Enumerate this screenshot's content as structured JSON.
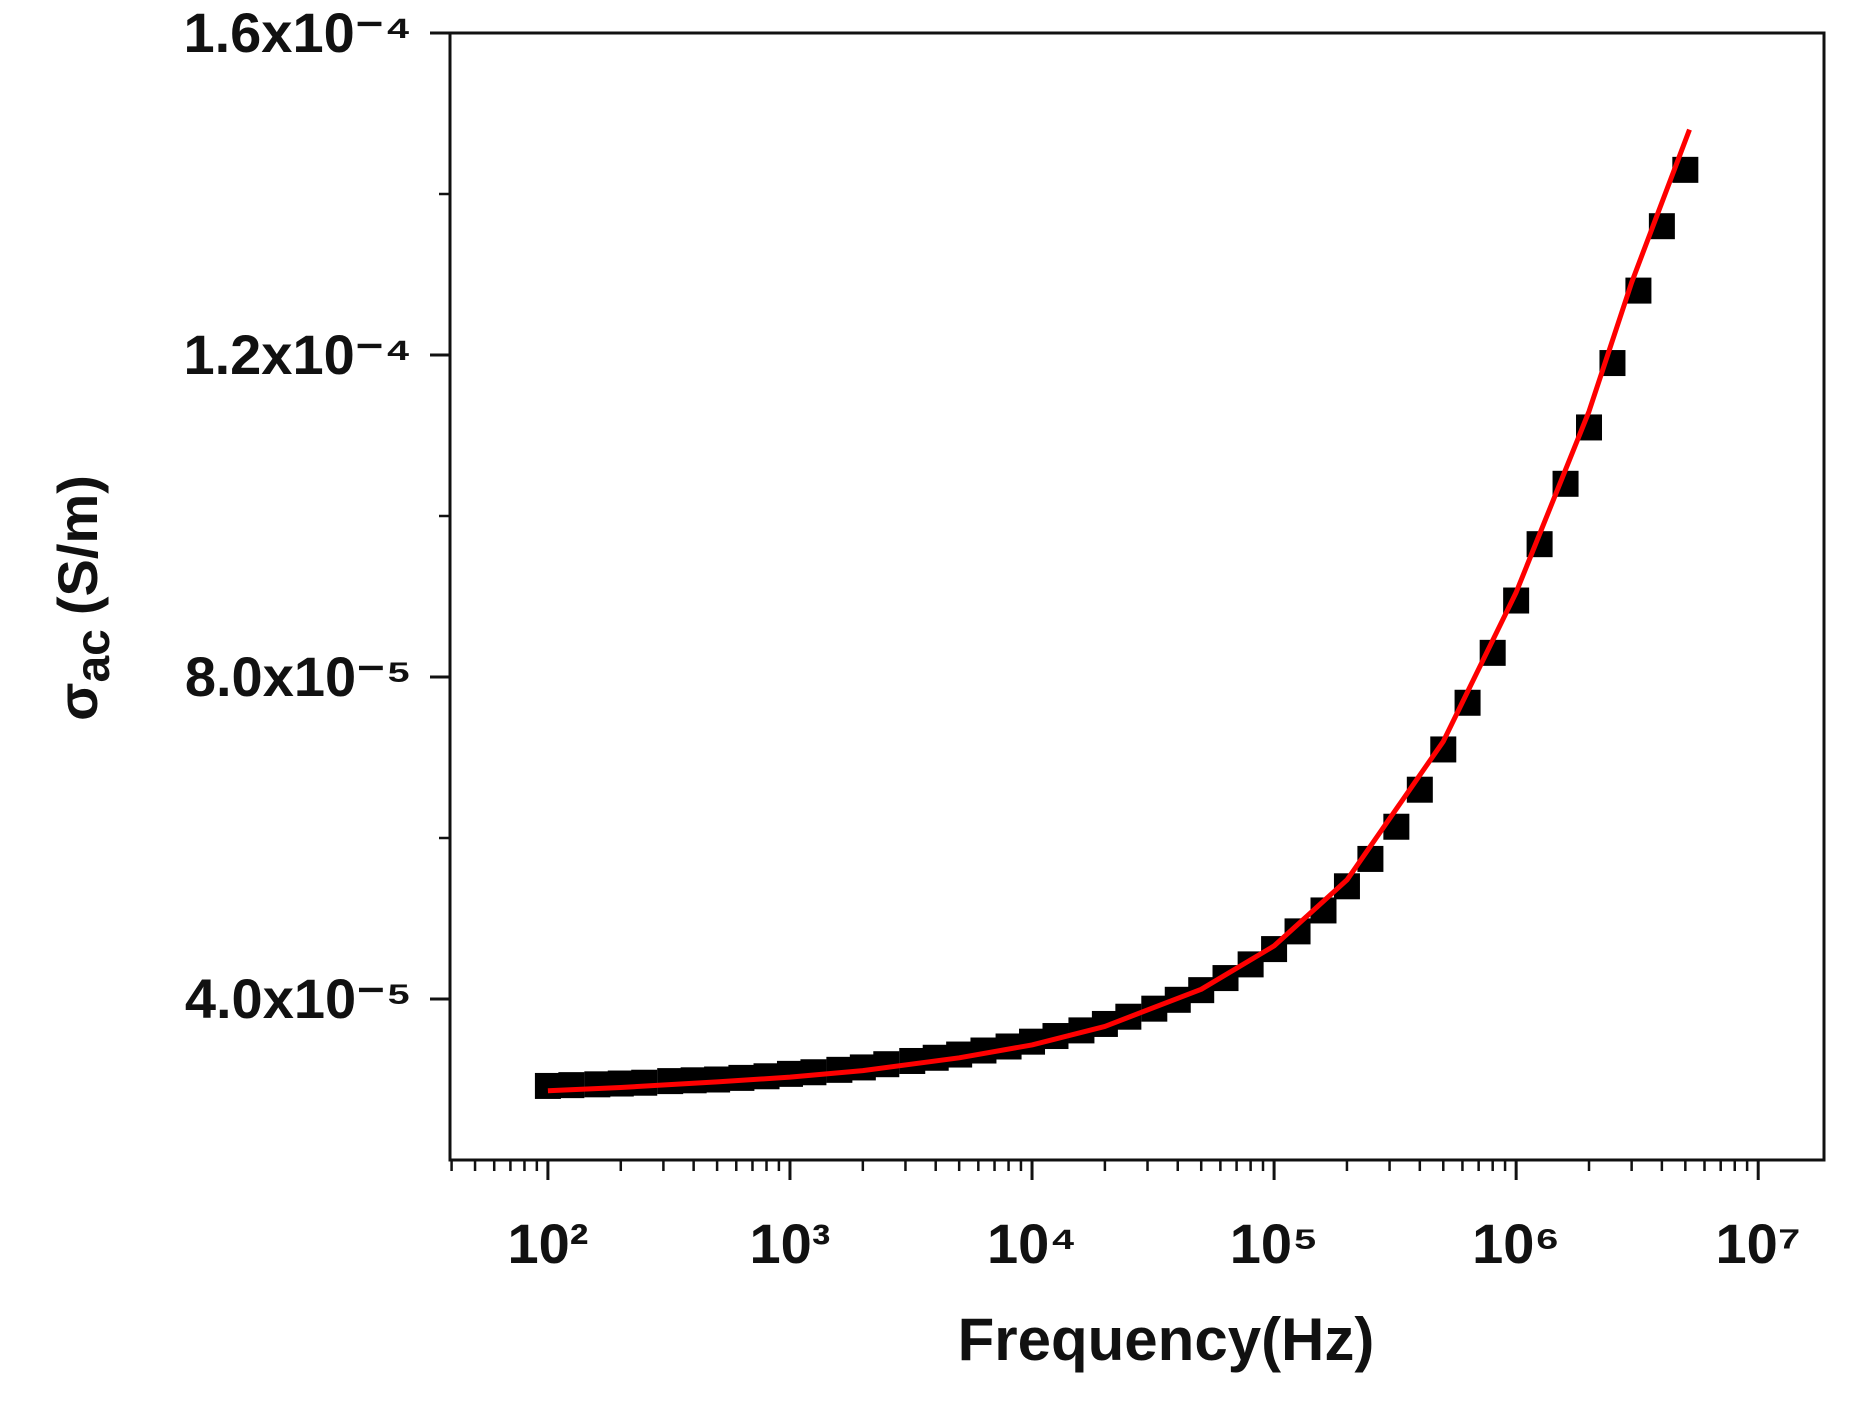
{
  "chart_data": {
    "type": "scatter",
    "x_label": "Frequency(Hz)",
    "y_label": {
      "symbol": "σ",
      "subscript": "ac",
      "unit": "(S/m)"
    },
    "xscale": "log",
    "xlim": [
      39.4,
      18700000
    ],
    "ylim": [
      2e-05,
      0.00016
    ],
    "xticks": [
      {
        "value": 100,
        "label": "10²"
      },
      {
        "value": 1000,
        "label": "10³"
      },
      {
        "value": 10000,
        "label": "10⁴"
      },
      {
        "value": 100000,
        "label": "10⁵"
      },
      {
        "value": 1000000,
        "label": "10⁶"
      },
      {
        "value": 10000000,
        "label": "10⁷"
      }
    ],
    "xminor_ticks": [
      40,
      50,
      60,
      70,
      80,
      90,
      200,
      300,
      400,
      500,
      600,
      700,
      800,
      900,
      2000,
      3000,
      4000,
      5000,
      6000,
      7000,
      8000,
      9000,
      20000,
      30000,
      40000,
      50000,
      60000,
      70000,
      80000,
      90000,
      200000,
      300000,
      400000,
      500000,
      600000,
      700000,
      800000,
      900000,
      2000000,
      3000000,
      4000000,
      5000000,
      6000000,
      7000000,
      8000000,
      9000000
    ],
    "yticks": [
      {
        "value": 4e-05,
        "label": "4.0x10⁻⁵"
      },
      {
        "value": 8e-05,
        "label": "8.0x10⁻⁵"
      },
      {
        "value": 0.00012,
        "label": "1.2x10⁻⁴"
      },
      {
        "value": 0.00016,
        "label": "1.6x10⁻⁴"
      }
    ],
    "yminor_ticks": [
      6e-05,
      0.0001,
      0.00014
    ],
    "series": [
      {
        "style": "square",
        "color": "#000000",
        "x": [
          100,
          125,
          160,
          200,
          250,
          320,
          400,
          500,
          630,
          800,
          1000,
          1250,
          1600,
          2000,
          2500,
          3200,
          4000,
          5000,
          6300,
          8000,
          10000,
          12500,
          16000,
          20000,
          25000,
          32000,
          40000,
          50000,
          63000,
          80000,
          100000,
          125000,
          160000,
          200000,
          250000,
          320000,
          400000,
          500000,
          630000,
          800000,
          1000000,
          1250000,
          1600000,
          2000000,
          2500000,
          3200000,
          4000000,
          5000000
        ],
        "values": [
          2.92e-05,
          2.93e-05,
          2.94e-05,
          2.95e-05,
          2.96e-05,
          2.98e-05,
          2.99e-05,
          3e-05,
          3.02e-05,
          3.04e-05,
          3.07e-05,
          3.09e-05,
          3.12e-05,
          3.15e-05,
          3.19e-05,
          3.23e-05,
          3.27e-05,
          3.31e-05,
          3.36e-05,
          3.41e-05,
          3.47e-05,
          3.54e-05,
          3.61e-05,
          3.69e-05,
          3.78e-05,
          3.88e-05,
          3.99e-05,
          4.11e-05,
          4.26e-05,
          4.43e-05,
          4.62e-05,
          4.84e-05,
          5.1e-05,
          5.4e-05,
          5.74e-05,
          6.14e-05,
          6.6e-05,
          7.1e-05,
          7.68e-05,
          8.3e-05,
          8.95e-05,
          9.65e-05,
          0.000104,
          0.000111,
          0.000119,
          0.000128,
          0.000136,
          0.000143
        ]
      },
      {
        "style": "line",
        "color": "#ff0000",
        "x": [
          100,
          200,
          500,
          1000,
          2000,
          5000,
          10000,
          20000,
          50000,
          100000,
          200000,
          500000,
          1000000,
          2000000,
          3000000,
          5200000
        ],
        "values": [
          2.86e-05,
          2.9e-05,
          2.97e-05,
          3.03e-05,
          3.11e-05,
          3.27e-05,
          3.43e-05,
          3.66e-05,
          4.12e-05,
          4.66e-05,
          5.48e-05,
          7.2e-05,
          9.05e-05,
          0.000113,
          0.000129,
          0.000148
        ]
      }
    ]
  }
}
